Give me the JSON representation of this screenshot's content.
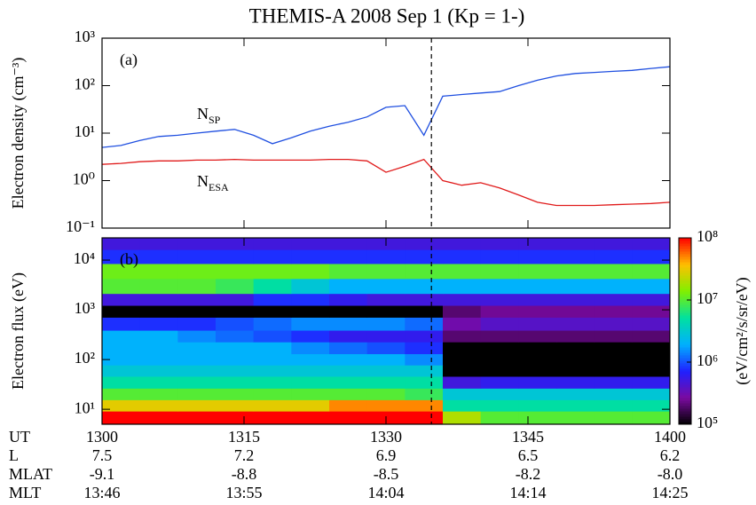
{
  "title": "THEMIS-A 2008 Sep 1 (Kp = 1-)",
  "chart_data": [
    {
      "type": "line",
      "panel_label": "(a)",
      "y_label": "Electron density (cm⁻³)",
      "log_y": true,
      "x": [
        780,
        782,
        784,
        786,
        788,
        790,
        792,
        794,
        796,
        798,
        800,
        802,
        804,
        806,
        808,
        810,
        812,
        814,
        816,
        818,
        820,
        822,
        824,
        826,
        828,
        830,
        832,
        834,
        836,
        838,
        840
      ],
      "xlim": [
        780,
        840
      ],
      "ylim": [
        0.1,
        1000
      ],
      "yticks": [
        {
          "value": 0.1,
          "label": "10⁻¹"
        },
        {
          "value": 1,
          "label": "10⁰"
        },
        {
          "value": 10,
          "label": "10¹"
        },
        {
          "value": 100,
          "label": "10²"
        },
        {
          "value": 1000,
          "label": "10³"
        }
      ],
      "series": [
        {
          "name": "N",
          "subscript": "SP",
          "color": "#1f4fe0",
          "values": [
            5,
            5.5,
            7,
            8.5,
            9,
            10,
            11,
            12,
            9,
            6,
            8,
            11,
            14,
            17,
            22,
            35,
            38,
            9,
            60,
            65,
            70,
            75,
            100,
            130,
            160,
            180,
            190,
            200,
            210,
            230,
            250
          ]
        },
        {
          "name": "N",
          "subscript": "ESA",
          "color": "#e01a1a",
          "values": [
            2.2,
            2.3,
            2.5,
            2.6,
            2.6,
            2.7,
            2.7,
            2.8,
            2.7,
            2.7,
            2.7,
            2.7,
            2.8,
            2.8,
            2.6,
            1.5,
            2,
            2.8,
            1.0,
            0.8,
            0.9,
            0.7,
            0.5,
            0.35,
            0.3,
            0.3,
            0.3,
            0.31,
            0.32,
            0.33,
            0.35
          ]
        }
      ],
      "marker_x": 814.8
    },
    {
      "type": "heatmap",
      "panel_label": "(b)",
      "y_label": "Electron flux (eV)",
      "log_y": true,
      "x": [
        782,
        786,
        790,
        794,
        798,
        802,
        806,
        810,
        814,
        818,
        822,
        826,
        830,
        834,
        838
      ],
      "y": [
        7,
        12,
        20,
        35,
        60,
        100,
        170,
        300,
        500,
        1000,
        1500,
        3000,
        6000,
        12000,
        22000
      ],
      "z": [
        [
          100000000.0,
          100000000.0,
          100000000.0,
          100000000.0,
          100000000.0,
          100000000.0,
          100000000.0,
          100000000.0,
          100000000.0,
          20000000.0,
          10000000.0,
          10000000.0,
          10000000.0,
          10000000.0,
          10000000.0
        ],
        [
          30000000.0,
          30000000.0,
          30000000.0,
          30000000.0,
          30000000.0,
          30000000.0,
          50000000.0,
          50000000.0,
          50000000.0,
          5000000.0,
          5000000.0,
          5000000.0,
          5000000.0,
          5000000.0,
          5000000.0
        ],
        [
          10000000.0,
          10000000.0,
          10000000.0,
          10000000.0,
          10000000.0,
          10000000.0,
          10000000.0,
          10000000.0,
          8000000.0,
          3000000.0,
          3000000.0,
          3000000.0,
          3000000.0,
          3000000.0,
          3000000.0
        ],
        [
          5000000.0,
          5000000.0,
          5000000.0,
          5000000.0,
          5000000.0,
          5000000.0,
          5000000.0,
          5000000.0,
          5000000.0,
          500000.0,
          600000.0,
          600000.0,
          600000.0,
          600000.0,
          600000.0
        ],
        [
          3000000.0,
          3000000.0,
          3000000.0,
          3000000.0,
          3000000.0,
          3000000.0,
          3000000.0,
          3000000.0,
          3000000.0,
          100000.0,
          100000.0,
          100000.0,
          100000.0,
          100000.0,
          100000.0
        ],
        [
          2000000.0,
          2000000.0,
          2000000.0,
          2000000.0,
          2000000.0,
          2000000.0,
          2000000.0,
          2000000.0,
          1500000.0,
          100000.0,
          100000.0,
          100000.0,
          100000.0,
          100000.0,
          100000.0
        ],
        [
          2000000.0,
          2000000.0,
          2000000.0,
          2000000.0,
          2000000.0,
          1500000.0,
          1200000.0,
          1000000.0,
          800000.0,
          100000.0,
          100000.0,
          100000.0,
          100000.0,
          100000.0,
          100000.0
        ],
        [
          2000000.0,
          2000000.0,
          1500000.0,
          1200000.0,
          1000000.0,
          800000.0,
          600000.0,
          600000.0,
          600000.0,
          200000.0,
          200000.0,
          200000.0,
          200000.0,
          200000.0,
          200000.0
        ],
        [
          800000.0,
          800000.0,
          800000.0,
          1000000.0,
          1200000.0,
          1500000.0,
          1500000.0,
          1500000.0,
          1200000.0,
          300000.0,
          400000.0,
          400000.0,
          400000.0,
          400000.0,
          400000.0
        ],
        [
          100000.0,
          100000.0,
          100000.0,
          100000.0,
          100000.0,
          100000.0,
          100000.0,
          100000.0,
          100000.0,
          200000.0,
          250000.0,
          250000.0,
          250000.0,
          250000.0,
          250000.0
        ],
        [
          500000.0,
          500000.0,
          500000.0,
          500000.0,
          800000.0,
          800000.0,
          600000.0,
          500000.0,
          500000.0,
          500000.0,
          500000.0,
          500000.0,
          500000.0,
          500000.0,
          500000.0
        ],
        [
          10000000.0,
          10000000.0,
          10000000.0,
          8000000.0,
          5000000.0,
          3000000.0,
          2000000.0,
          2000000.0,
          2000000.0,
          2000000.0,
          2000000.0,
          2000000.0,
          2000000.0,
          2000000.0,
          2000000.0
        ],
        [
          12000000.0,
          12000000.0,
          12000000.0,
          12000000.0,
          12000000.0,
          12000000.0,
          10000000.0,
          10000000.0,
          10000000.0,
          10000000.0,
          10000000.0,
          10000000.0,
          10000000.0,
          10000000.0,
          10000000.0
        ],
        [
          800000.0,
          800000.0,
          800000.0,
          800000.0,
          800000.0,
          800000.0,
          800000.0,
          800000.0,
          800000.0,
          800000.0,
          800000.0,
          800000.0,
          800000.0,
          800000.0,
          800000.0
        ],
        [
          500000.0,
          500000.0,
          500000.0,
          500000.0,
          500000.0,
          500000.0,
          500000.0,
          500000.0,
          500000.0,
          500000.0,
          500000.0,
          500000.0,
          500000.0,
          500000.0,
          500000.0
        ]
      ],
      "xlim": [
        780,
        840
      ],
      "ylim": [
        5,
        28000
      ],
      "yticks": [
        {
          "value": 10,
          "label": "10¹"
        },
        {
          "value": 100,
          "label": "10²"
        },
        {
          "value": 1000,
          "label": "10³"
        },
        {
          "value": 10000,
          "label": "10⁴"
        }
      ],
      "x_label": "UT",
      "xticks": [
        {
          "value": 780,
          "label": "1300"
        },
        {
          "value": 795,
          "label": "1315"
        },
        {
          "value": 810,
          "label": "1330"
        },
        {
          "value": 825,
          "label": "1345"
        },
        {
          "value": 840,
          "label": "1400"
        }
      ],
      "clim": [
        100000,
        100000000
      ],
      "cticks": [
        {
          "value": 100000,
          "label": "10⁵"
        },
        {
          "value": 1000000,
          "label": "10⁶"
        },
        {
          "value": 10000000,
          "label": "10⁷"
        },
        {
          "value": 100000000,
          "label": "10⁸"
        }
      ],
      "colorbar_label": "(eV/cm²/s/sr/eV)",
      "colormap": [
        "#000000",
        "#7a0aa0",
        "#2020ff",
        "#00b0ff",
        "#00e0a0",
        "#80f000",
        "#ffc000",
        "#ff0000"
      ],
      "marker_x": 814.8,
      "ephemeris": [
        {
          "label": "L",
          "values": [
            "7.5",
            "7.2",
            "6.9",
            "6.5",
            "6.2"
          ]
        },
        {
          "label": "MLAT",
          "values": [
            "-9.1",
            "-8.8",
            "-8.5",
            "-8.2",
            "-8.0"
          ]
        },
        {
          "label": "MLT",
          "values": [
            "13:46",
            "13:55",
            "14:04",
            "14:14",
            "14:25"
          ]
        }
      ]
    }
  ]
}
